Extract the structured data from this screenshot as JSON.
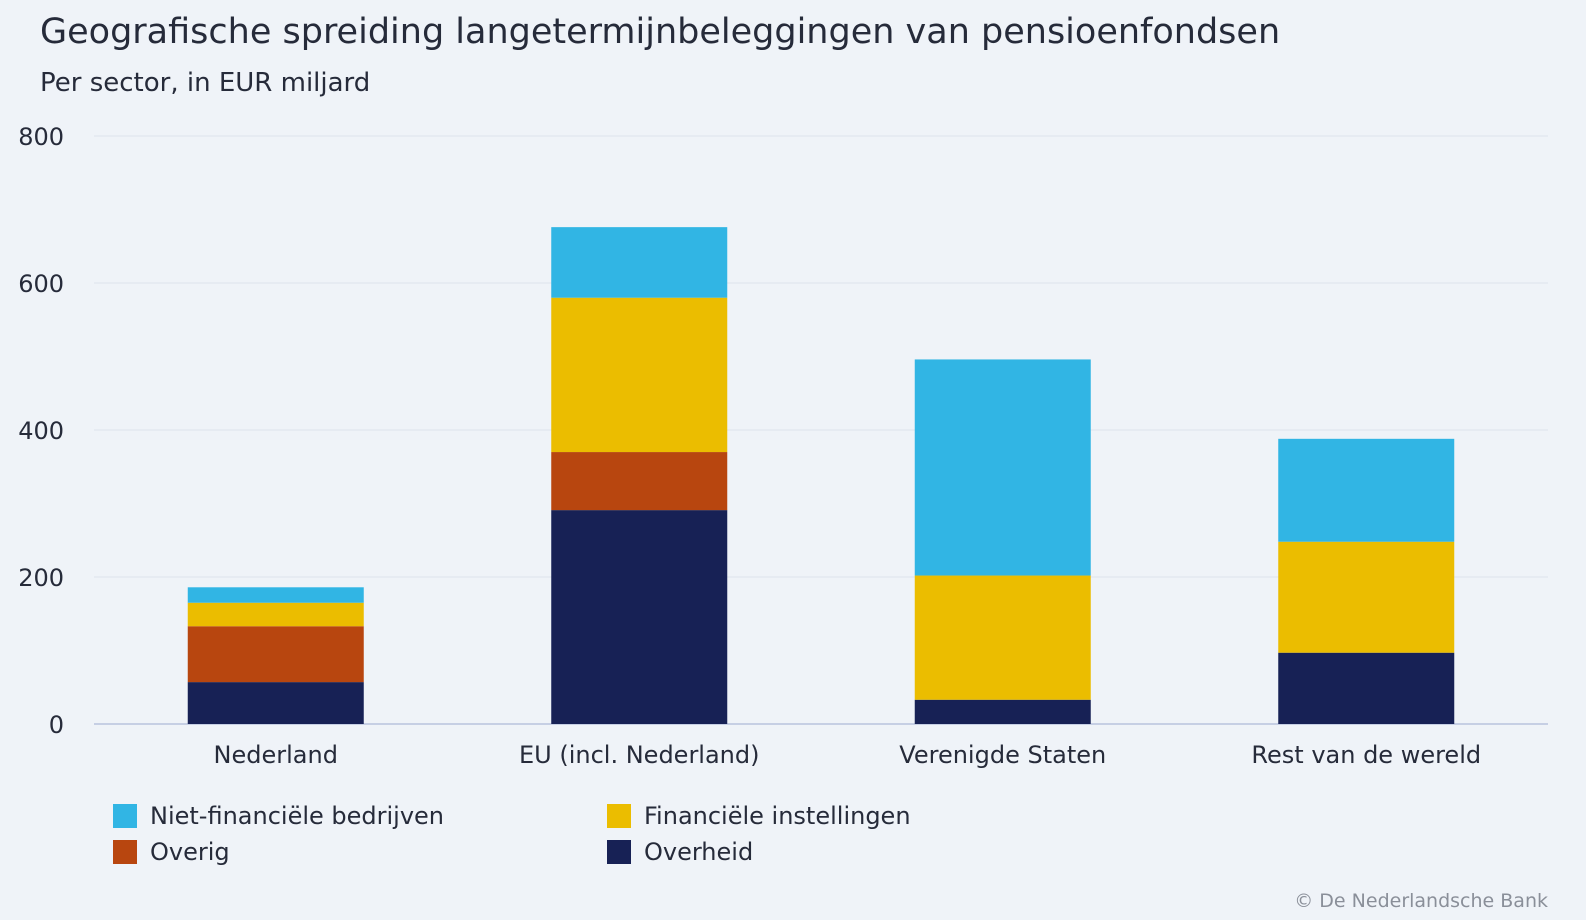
{
  "chart_data": {
    "type": "bar",
    "stacked": true,
    "title": "Geografische spreiding langetermijnbeleggingen van pensioenfondsen",
    "subtitle": "Per sector, in EUR miljard",
    "xlabel": "",
    "ylabel": "",
    "ylim": [
      0,
      800
    ],
    "yticks": [
      0,
      200,
      400,
      600,
      800
    ],
    "grid": true,
    "legend_position": "bottom-left",
    "categories": [
      "Nederland",
      "EU (incl. Nederland)",
      "Verenigde Staten",
      "Rest van de wereld"
    ],
    "series": [
      {
        "name": "Overheid",
        "color": "#172155",
        "values": [
          57,
          291,
          33,
          97
        ]
      },
      {
        "name": "Overig",
        "color": "#b8460f",
        "values": [
          76,
          79,
          0,
          0
        ]
      },
      {
        "name": "Financiële instellingen",
        "color": "#ebbd00",
        "values": [
          32,
          210,
          169,
          151
        ]
      },
      {
        "name": "Niet-financiële bedrijven",
        "color": "#31b5e4",
        "values": [
          21,
          96,
          294,
          140
        ]
      }
    ]
  },
  "legend": [
    {
      "label": "Niet-financiële bedrijven",
      "color": "#31b5e4"
    },
    {
      "label": "Financiële instellingen",
      "color": "#ebbd00"
    },
    {
      "label": "Overig",
      "color": "#b8460f"
    },
    {
      "label": "Overheid",
      "color": "#172155"
    }
  ],
  "credit": "© De Nederlandsche Bank"
}
